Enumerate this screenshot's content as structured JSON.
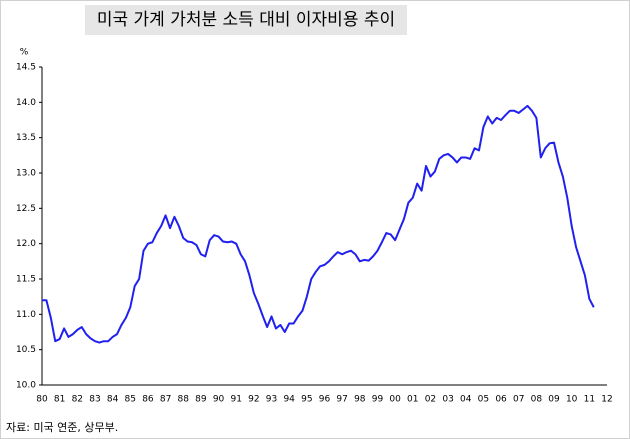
{
  "chart_data": {
    "type": "line",
    "title": "미국 가계 가처분 소득 대비 이자비용 추이",
    "y_label": "%",
    "source": "자료: 미국 연준, 상무부.",
    "color": "#2020f0",
    "ylim": [
      10,
      14.5
    ],
    "yticks": [
      {
        "value": 10,
        "label": "10.0"
      },
      10.5,
      {
        "value": 11,
        "label": "11.0"
      },
      11.5,
      {
        "value": 12,
        "label": "12.0"
      },
      12.5,
      {
        "value": 13,
        "label": "13.0"
      },
      13.5,
      {
        "value": 14,
        "label": "14.0"
      },
      14.5
    ],
    "categories": [
      "80",
      null,
      null,
      null,
      "81",
      null,
      null,
      null,
      "82",
      null,
      null,
      null,
      "83",
      null,
      null,
      null,
      "84",
      null,
      null,
      null,
      "85",
      null,
      null,
      null,
      "86",
      null,
      null,
      null,
      "87",
      null,
      null,
      null,
      "88",
      null,
      null,
      null,
      "89",
      null,
      null,
      null,
      "90",
      null,
      null,
      null,
      "91",
      null,
      null,
      null,
      "92",
      null,
      null,
      null,
      "93",
      null,
      null,
      null,
      "94",
      null,
      null,
      null,
      "95",
      null,
      null,
      null,
      "96",
      null,
      null,
      null,
      "97",
      null,
      null,
      null,
      "98",
      null,
      null,
      null,
      "99",
      null,
      null,
      null,
      "00",
      null,
      null,
      null,
      "01",
      null,
      null,
      null,
      "02",
      null,
      null,
      null,
      "03",
      null,
      null,
      null,
      "04",
      null,
      null,
      null,
      "05",
      null,
      null,
      null,
      "06",
      null,
      null,
      null,
      "07",
      null,
      null,
      null,
      "08",
      null,
      null,
      null,
      "09",
      null,
      null,
      null,
      "10",
      null,
      null,
      null,
      "11",
      null,
      null,
      null,
      "12"
    ],
    "values": [
      11.2,
      11.2,
      10.95,
      10.62,
      10.65,
      10.8,
      10.68,
      10.72,
      10.78,
      10.82,
      10.72,
      10.66,
      10.62,
      10.6,
      10.62,
      10.62,
      10.68,
      10.72,
      10.85,
      10.95,
      11.1,
      11.4,
      11.5,
      11.9,
      12.0,
      12.02,
      12.15,
      12.25,
      12.4,
      12.22,
      12.38,
      12.25,
      12.08,
      12.03,
      12.02,
      11.98,
      11.85,
      11.82,
      12.05,
      12.12,
      12.1,
      12.03,
      12.02,
      12.03,
      12.0,
      11.85,
      11.75,
      11.55,
      11.3,
      11.15,
      10.98,
      10.82,
      10.97,
      10.8,
      10.85,
      10.75,
      10.87,
      10.87,
      10.97,
      11.05,
      11.25,
      11.5,
      11.6,
      11.68,
      11.7,
      11.75,
      11.82,
      11.88,
      11.85,
      11.88,
      11.9,
      11.85,
      11.75,
      11.77,
      11.76,
      11.82,
      11.9,
      12.02,
      12.15,
      12.13,
      12.05,
      12.2,
      12.35,
      12.58,
      12.65,
      12.85,
      12.75,
      13.1,
      12.95,
      13.02,
      13.2,
      13.25,
      13.27,
      13.22,
      13.15,
      13.22,
      13.22,
      13.2,
      13.35,
      13.32,
      13.65,
      13.8,
      13.7,
      13.78,
      13.75,
      13.82,
      13.88,
      13.88,
      13.85,
      13.9,
      13.95,
      13.88,
      13.78,
      13.22,
      13.35,
      13.42,
      13.43,
      13.15,
      12.95,
      12.65,
      12.25,
      11.95,
      11.75,
      11.55,
      11.22,
      11.1,
      null,
      null,
      null
    ]
  }
}
